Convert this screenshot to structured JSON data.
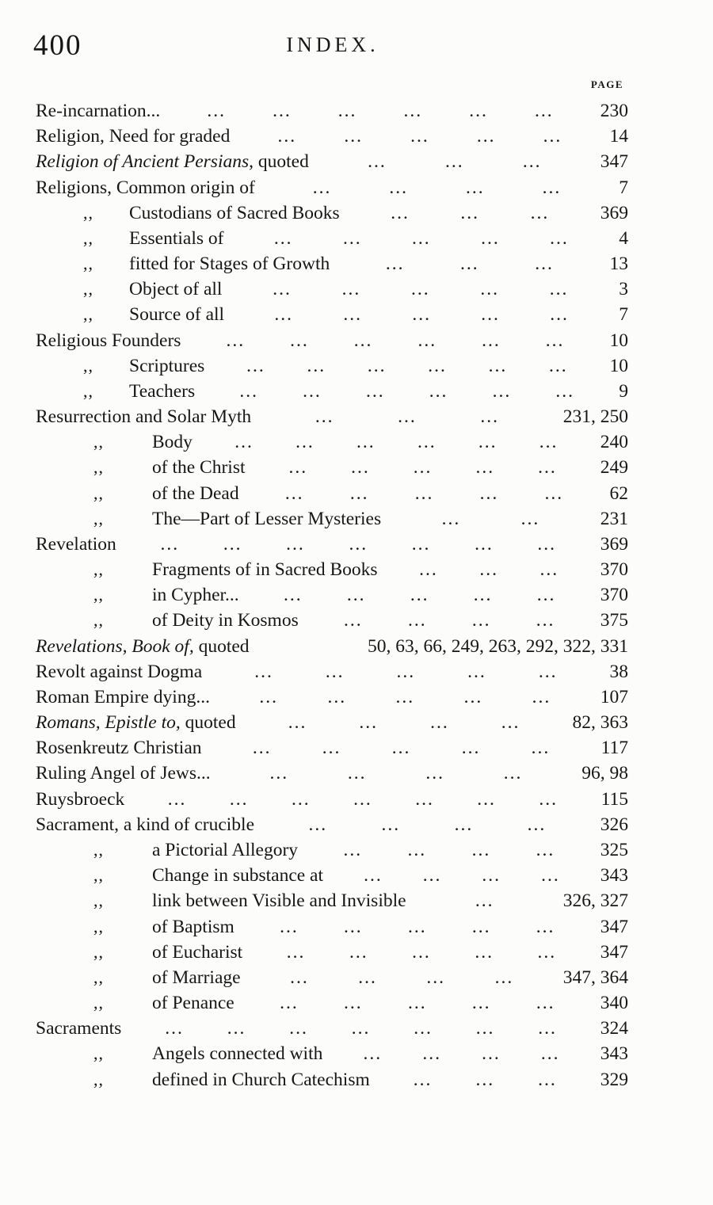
{
  "page": {
    "folio": "400",
    "running_title": "INDEX.",
    "column_header": "PAGE"
  },
  "index": {
    "ditto_mark": ",,",
    "leader_dots": "...",
    "rows": [
      {
        "ind": 0,
        "q": false,
        "seg": [
          {
            "t": "Re-incarnation...",
            "i": false
          }
        ],
        "dots": 6,
        "page": "230"
      },
      {
        "ind": 0,
        "q": false,
        "seg": [
          {
            "t": "Religion, Need for graded",
            "i": false
          }
        ],
        "dots": 5,
        "page": "14"
      },
      {
        "ind": 0,
        "q": false,
        "seg": [
          {
            "t": "Religion of Ancient Persians",
            "i": true
          },
          {
            "t": ", quoted",
            "i": false
          }
        ],
        "dots": 3,
        "page": "347"
      },
      {
        "ind": 0,
        "q": false,
        "seg": [
          {
            "t": "Religions, Common origin of",
            "i": false
          }
        ],
        "dots": 4,
        "page": "7"
      },
      {
        "ind": 1,
        "q": true,
        "seg": [
          {
            "t": "Custodians of Sacred Books",
            "i": false
          }
        ],
        "dots": 3,
        "page": "369"
      },
      {
        "ind": 1,
        "q": true,
        "seg": [
          {
            "t": "Essentials of",
            "i": false
          }
        ],
        "dots": 5,
        "page": "4"
      },
      {
        "ind": 1,
        "q": true,
        "seg": [
          {
            "t": "fitted for Stages of Growth",
            "i": false
          }
        ],
        "dots": 3,
        "page": "13"
      },
      {
        "ind": 1,
        "q": true,
        "seg": [
          {
            "t": "Object of all",
            "i": false
          }
        ],
        "dots": 5,
        "page": "3"
      },
      {
        "ind": 1,
        "q": true,
        "seg": [
          {
            "t": "Source of all",
            "i": false
          }
        ],
        "dots": 5,
        "page": "7"
      },
      {
        "ind": 0,
        "q": false,
        "seg": [
          {
            "t": "Religious Founders",
            "i": false
          }
        ],
        "dots": 6,
        "page": "10"
      },
      {
        "ind": 1,
        "q": true,
        "seg": [
          {
            "t": "Scriptures",
            "i": false
          }
        ],
        "dots": 6,
        "page": "10"
      },
      {
        "ind": 1,
        "q": true,
        "seg": [
          {
            "t": "Teachers",
            "i": false
          }
        ],
        "dots": 6,
        "page": "9"
      },
      {
        "ind": 0,
        "q": false,
        "seg": [
          {
            "t": "Resurrection and Solar Myth",
            "i": false
          }
        ],
        "dots": 3,
        "page": "231, 250"
      },
      {
        "ind": 2,
        "q": true,
        "seg": [
          {
            "t": "Body",
            "i": false
          }
        ],
        "dots": 6,
        "page": "240"
      },
      {
        "ind": 2,
        "q": true,
        "seg": [
          {
            "t": "of the Christ",
            "i": false
          }
        ],
        "dots": 5,
        "page": "249"
      },
      {
        "ind": 2,
        "q": true,
        "seg": [
          {
            "t": "of the Dead",
            "i": false
          }
        ],
        "dots": 5,
        "page": "62"
      },
      {
        "ind": 2,
        "q": true,
        "seg": [
          {
            "t": "The—Part of Lesser Mysteries",
            "i": false
          }
        ],
        "dots": 2,
        "page": "231"
      },
      {
        "ind": 0,
        "q": false,
        "seg": [
          {
            "t": "Revelation",
            "i": false
          }
        ],
        "dots": 7,
        "page": "369"
      },
      {
        "ind": 2,
        "q": true,
        "seg": [
          {
            "t": "Fragments of in Sacred Books",
            "i": false
          }
        ],
        "dots": 3,
        "page": "370"
      },
      {
        "ind": 2,
        "q": true,
        "seg": [
          {
            "t": "in Cypher...",
            "i": false
          }
        ],
        "dots": 5,
        "page": "370"
      },
      {
        "ind": 2,
        "q": true,
        "seg": [
          {
            "t": "of Deity in Kosmos",
            "i": false
          }
        ],
        "dots": 4,
        "page": "375"
      },
      {
        "ind": 0,
        "q": false,
        "seg": [
          {
            "t": "Revelations, Book of,",
            "i": true
          },
          {
            "t": " quoted",
            "i": false
          }
        ],
        "dots": 0,
        "page": "50, 63, 66, 249, 263, 292, 322, 331"
      },
      {
        "ind": 0,
        "q": false,
        "seg": [
          {
            "t": "Revolt against Dogma",
            "i": false
          }
        ],
        "dots": 5,
        "page": "38"
      },
      {
        "ind": 0,
        "q": false,
        "seg": [
          {
            "t": "Roman Empire dying...",
            "i": false
          }
        ],
        "dots": 5,
        "page": "107"
      },
      {
        "ind": 0,
        "q": false,
        "seg": [
          {
            "t": "Romans, Epistle to,",
            "i": true
          },
          {
            "t": " quoted",
            "i": false
          }
        ],
        "dots": 4,
        "page": "82, 363"
      },
      {
        "ind": 0,
        "q": false,
        "seg": [
          {
            "t": "Rosenkreutz Christian",
            "i": false
          }
        ],
        "dots": 5,
        "page": "117"
      },
      {
        "ind": 0,
        "q": false,
        "seg": [
          {
            "t": "Ruling Angel of Jews...",
            "i": false
          }
        ],
        "dots": 4,
        "page": "96, 98"
      },
      {
        "ind": 0,
        "q": false,
        "seg": [
          {
            "t": "Ruysbroeck",
            "i": false
          }
        ],
        "dots": 7,
        "page": "115"
      },
      {
        "ind": 0,
        "q": false,
        "seg": [
          {
            "t": "Sacrament, a kind of crucible",
            "i": false
          }
        ],
        "dots": 4,
        "page": "326"
      },
      {
        "ind": 2,
        "q": true,
        "seg": [
          {
            "t": "a Pictorial Allegory",
            "i": false
          }
        ],
        "dots": 4,
        "page": "325"
      },
      {
        "ind": 2,
        "q": true,
        "seg": [
          {
            "t": "Change in substance at",
            "i": false
          }
        ],
        "dots": 4,
        "page": "343"
      },
      {
        "ind": 2,
        "q": true,
        "seg": [
          {
            "t": "link between Visible and Invisible",
            "i": false
          }
        ],
        "dots": 1,
        "page": "326, 327"
      },
      {
        "ind": 2,
        "q": true,
        "seg": [
          {
            "t": "of Baptism",
            "i": false
          }
        ],
        "dots": 5,
        "page": "347"
      },
      {
        "ind": 2,
        "q": true,
        "seg": [
          {
            "t": "of Eucharist",
            "i": false
          }
        ],
        "dots": 5,
        "page": "347"
      },
      {
        "ind": 2,
        "q": true,
        "seg": [
          {
            "t": "of Marriage",
            "i": false
          }
        ],
        "dots": 4,
        "page": "347, 364"
      },
      {
        "ind": 2,
        "q": true,
        "seg": [
          {
            "t": "of Penance",
            "i": false
          }
        ],
        "dots": 5,
        "page": "340"
      },
      {
        "ind": 0,
        "q": false,
        "seg": [
          {
            "t": "Sacraments",
            "i": false
          }
        ],
        "dots": 7,
        "page": "324"
      },
      {
        "ind": 2,
        "q": true,
        "seg": [
          {
            "t": "Angels connected with",
            "i": false
          }
        ],
        "dots": 4,
        "page": "343"
      },
      {
        "ind": 2,
        "q": true,
        "seg": [
          {
            "t": "defined in Church Catechism",
            "i": false
          }
        ],
        "dots": 3,
        "page": "329"
      }
    ]
  }
}
